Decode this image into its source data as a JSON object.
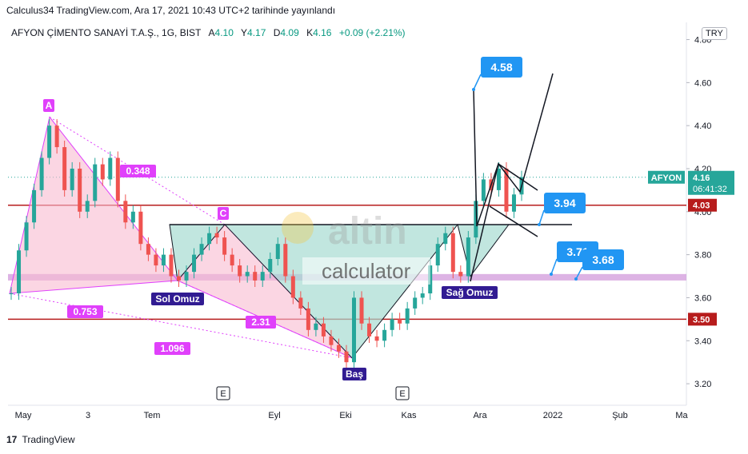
{
  "header": {
    "published": "Calculus34 TradingView.com, Ara 17, 2021 10:43 UTC+2 tarihinde yayınlandı"
  },
  "legend": {
    "symbol": "AFYON ÇİMENTO SANAYİ T.A.Ş., 1G, BIST",
    "open_label": "A",
    "open": "4.10",
    "high_label": "Y",
    "high": "4.17",
    "low_label": "D",
    "low": "4.09",
    "close_label": "K",
    "close": "4.16",
    "change": "+0.09 (+2.21%)"
  },
  "currency": "TRY",
  "footer": {
    "brand": "TradingView",
    "logo_icon": "tradingview-logo-icon"
  },
  "watermark": {
    "brand": "altin",
    "sub": "calculator"
  },
  "colors": {
    "up": "#26a69a",
    "down": "#ef5350",
    "pink_fill": "#f8bbd0",
    "magenta": "#e040fb",
    "teal_fill": "#a7dcd2",
    "purple_band": "#ce93d8",
    "red_line": "#b71c1c",
    "callout": "#2196f3",
    "label_dark": "#311b92"
  },
  "chart_data": {
    "type": "candlestick",
    "x_ticks": [
      "May",
      "3",
      "Tem",
      "Eyl",
      "Eki",
      "Kas",
      "Ara",
      "2022",
      "Şub",
      "Ma"
    ],
    "y_ticks": [
      "4.80",
      "4.60",
      "4.40",
      "4.20",
      "4.00",
      "3.80",
      "3.60",
      "3.40",
      "3.20"
    ],
    "ylim": [
      3.1,
      4.88
    ],
    "price_tags": [
      {
        "label": "AFYON",
        "value": "4.16",
        "time": "06:41:32",
        "price": 4.16
      },
      {
        "value": "4.03",
        "price": 4.03
      },
      {
        "value": "3.50",
        "price": 3.5
      }
    ],
    "horizontal_lines": [
      4.03,
      3.5
    ],
    "band": [
      3.68,
      3.71
    ],
    "neckline": 3.94,
    "pattern_labels": {
      "A": "A",
      "C": "C",
      "ratio_1": "0.348",
      "ratio_2": "0.753",
      "ratio_3": "2.31",
      "ratio_4": "1.096",
      "left_shoulder": "Sol Omuz",
      "head": "Baş",
      "right_shoulder": "Sağ Omuz"
    },
    "callouts": [
      "4.58",
      "3.94",
      "3.71",
      "3.68"
    ],
    "event_markers": [
      "E",
      "E"
    ],
    "close_path": [
      [
        3.62,
        3.82,
        3.95,
        4.1,
        4.25,
        4.4,
        4.3,
        4.1,
        4.2,
        4.0,
        4.05,
        4.22,
        4.15,
        4.25,
        4.05,
        3.95,
        4.0,
        3.85,
        3.8,
        3.75,
        3.8,
        3.7,
        3.68,
        3.72,
        3.8,
        3.85,
        3.9,
        3.88,
        3.8,
        3.75,
        3.7,
        3.72,
        3.68,
        3.72,
        3.78,
        3.85,
        3.7,
        3.6,
        3.55,
        3.45,
        3.48,
        3.42,
        3.38,
        3.35,
        3.3,
        3.6,
        3.48,
        3.42,
        3.4,
        3.45,
        3.5,
        3.48,
        3.55,
        3.6,
        3.62,
        3.75,
        3.85,
        3.9,
        3.72,
        3.7,
        3.88,
        4.05,
        4.15,
        4.1,
        4.2,
        4.0,
        4.08,
        4.16
      ]
    ]
  }
}
